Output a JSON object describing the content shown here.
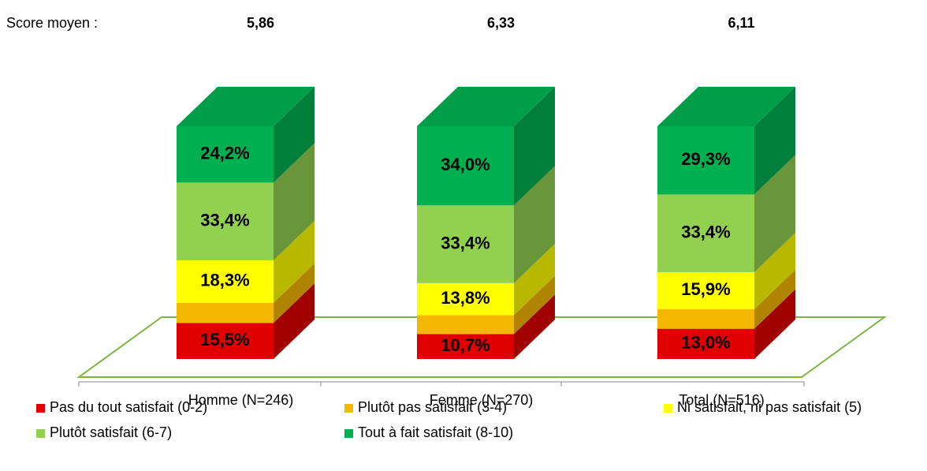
{
  "chart_data": {
    "type": "bar3d_stacked",
    "score_title": "Score moyen :",
    "score_labels": [
      "5,86",
      "6,33",
      "6,11"
    ],
    "categories": [
      "Homme (N=246)",
      "Femme (N=270)",
      "Total (N=516)"
    ],
    "ylim": [
      0,
      100
    ],
    "series": [
      {
        "name": "Pas du tout satisfait (0-2)",
        "color": "#e00000",
        "values": [
          15.5,
          10.7,
          13.0
        ],
        "value_labels": [
          "15,5%",
          "10,7%",
          "13,0%"
        ]
      },
      {
        "name": "Plutôt pas satisfait (3-4)",
        "color": "#f5b800",
        "values": [
          8.6,
          8.1,
          8.4
        ]
      },
      {
        "name": "Ni satisfait, ni pas satisfait (5)",
        "color": "#ffff00",
        "values": [
          18.3,
          13.8,
          15.9
        ],
        "value_labels": [
          "18,3%",
          "13,8%",
          "15,9%"
        ]
      },
      {
        "name": "Plutôt satisfait (6-7)",
        "color": "#92d050",
        "values": [
          33.4,
          33.4,
          33.4
        ],
        "value_labels": [
          "33,4%",
          "33,4%",
          "33,4%"
        ]
      },
      {
        "name": "Tout à fait satisfait (8-10)",
        "color": "#00b050",
        "values": [
          24.2,
          34.0,
          29.3
        ],
        "value_labels": [
          "24,2%",
          "34,0%",
          "29,3%"
        ]
      }
    ]
  }
}
